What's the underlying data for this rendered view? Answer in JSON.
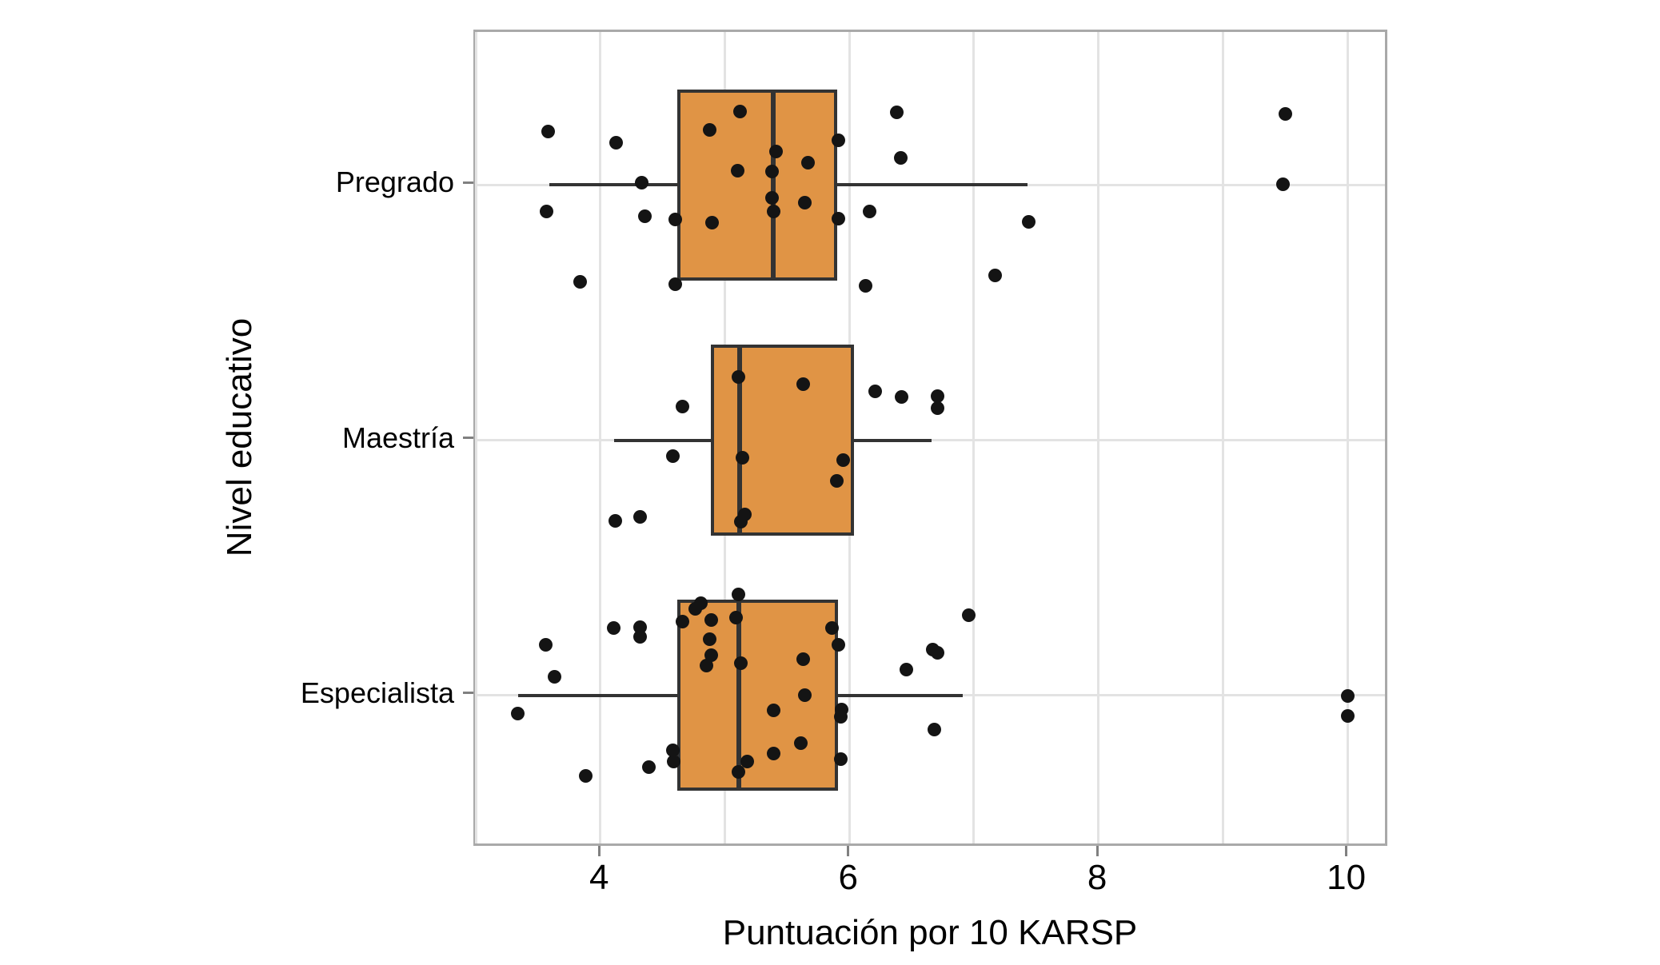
{
  "chart_data": {
    "type": "boxplot",
    "orientation": "horizontal",
    "title": "",
    "xlabel": "Puntuación por 10 KARSP",
    "ylabel": "Nivel educativo",
    "xlim": [
      2.99,
      10.33
    ],
    "x_ticks": [
      4,
      6,
      8,
      10
    ],
    "x_gridlines": [
      3,
      4,
      5,
      6,
      7,
      8,
      9,
      10
    ],
    "grid": true,
    "legend": false,
    "categories": [
      "Pregrado",
      "Maestría",
      "Especialista"
    ],
    "series": [
      {
        "name": "Pregrado",
        "box": {
          "whisker_low": 3.58,
          "q1": 4.61,
          "median": 5.38,
          "q3": 5.89,
          "whisker_high": 7.42
        },
        "points": [
          [
            3.57,
            -67
          ],
          [
            4.12,
            -53
          ],
          [
            4.32,
            -3
          ],
          [
            3.56,
            33
          ],
          [
            4.35,
            39
          ],
          [
            3.83,
            121
          ],
          [
            5.11,
            -92
          ],
          [
            4.87,
            -69
          ],
          [
            5.9,
            -56
          ],
          [
            5.4,
            -42
          ],
          [
            5.66,
            -28
          ],
          [
            5.09,
            -18
          ],
          [
            5.37,
            -17
          ],
          [
            6.37,
            -91
          ],
          [
            6.4,
            -34
          ],
          [
            5.37,
            16
          ],
          [
            5.63,
            22
          ],
          [
            5.38,
            33
          ],
          [
            4.59,
            43
          ],
          [
            4.89,
            47
          ],
          [
            5.9,
            42
          ],
          [
            6.15,
            33
          ],
          [
            7.43,
            46
          ],
          [
            4.59,
            124
          ],
          [
            6.12,
            126
          ],
          [
            7.16,
            113
          ],
          [
            9.49,
            -89
          ],
          [
            9.47,
            -1
          ]
        ]
      },
      {
        "name": "Maestría",
        "box": {
          "whisker_low": 4.1,
          "q1": 4.88,
          "median": 5.11,
          "q3": 6.03,
          "whisker_high": 6.65
        },
        "points": [
          [
            4.11,
            101
          ],
          [
            4.31,
            96
          ],
          [
            4.57,
            20
          ],
          [
            4.65,
            -42
          ],
          [
            5.1,
            -79
          ],
          [
            5.13,
            22
          ],
          [
            5.15,
            93
          ],
          [
            5.12,
            102
          ],
          [
            5.62,
            -70
          ],
          [
            5.94,
            25
          ],
          [
            5.89,
            51
          ],
          [
            6.2,
            -61
          ],
          [
            6.41,
            -54
          ],
          [
            6.7,
            -55
          ],
          [
            6.7,
            -40
          ]
        ]
      },
      {
        "name": "Especialista",
        "box": {
          "whisker_low": 3.33,
          "q1": 4.61,
          "median": 5.1,
          "q3": 5.9,
          "whisker_high": 6.9
        },
        "points": [
          [
            5.1,
            -126
          ],
          [
            4.8,
            -115
          ],
          [
            4.75,
            -108
          ],
          [
            4.65,
            -92
          ],
          [
            4.88,
            -94
          ],
          [
            5.08,
            -97
          ],
          [
            5.85,
            -84
          ],
          [
            4.87,
            -70
          ],
          [
            5.9,
            -63
          ],
          [
            4.88,
            -50
          ],
          [
            4.84,
            -37
          ],
          [
            5.12,
            -40
          ],
          [
            5.62,
            -45
          ],
          [
            6.45,
            -32
          ],
          [
            6.66,
            -57
          ],
          [
            6.7,
            -53
          ],
          [
            6.95,
            -100
          ],
          [
            5.63,
            0
          ],
          [
            5.38,
            19
          ],
          [
            5.93,
            18
          ],
          [
            5.92,
            27
          ],
          [
            6.67,
            43
          ],
          [
            5.6,
            60
          ],
          [
            5.38,
            73
          ],
          [
            5.92,
            80
          ],
          [
            4.57,
            69
          ],
          [
            4.58,
            83
          ],
          [
            5.17,
            83
          ],
          [
            5.1,
            96
          ],
          [
            4.1,
            -84
          ],
          [
            4.31,
            -85
          ],
          [
            4.31,
            -73
          ],
          [
            3.55,
            -63
          ],
          [
            3.62,
            -23
          ],
          [
            3.33,
            23
          ],
          [
            4.38,
            90
          ],
          [
            3.87,
            101
          ],
          [
            9.99,
            1
          ],
          [
            9.99,
            26
          ]
        ]
      }
    ],
    "style": {
      "box_fill": "#e09445",
      "box_stroke": "#333333",
      "point_color": "#141414",
      "gridline_color": "#e3e3e3",
      "panel_border_color": "#a9a9a9",
      "tick_color": "#808080",
      "text_color": "#000000",
      "background": "#ffffff"
    }
  }
}
